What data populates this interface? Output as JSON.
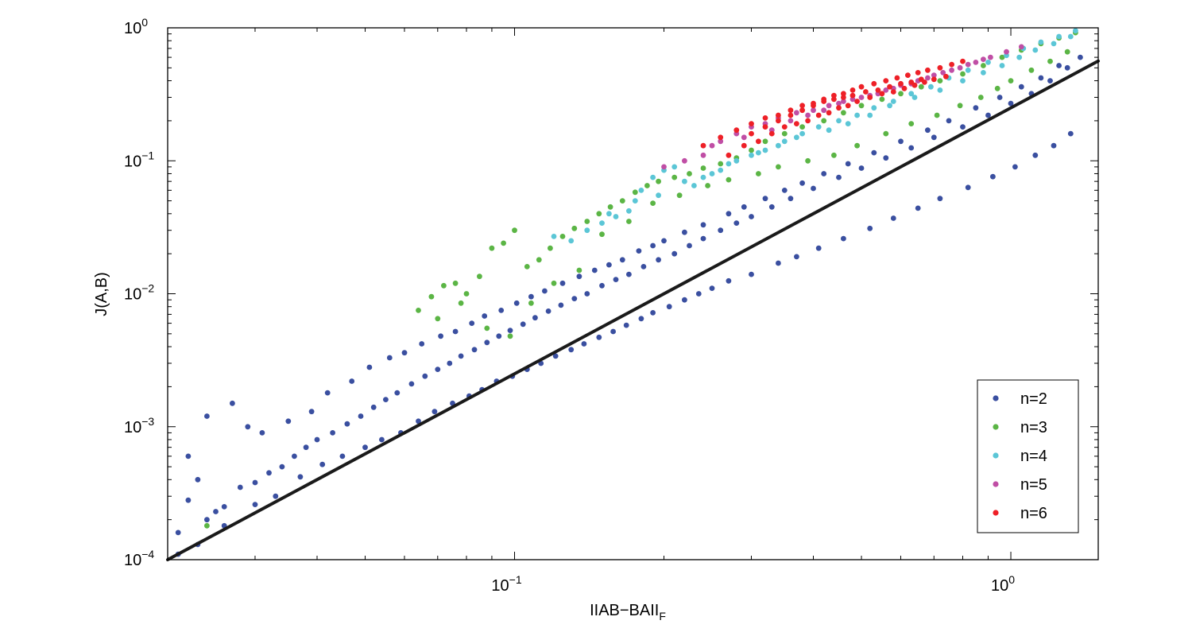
{
  "chart_data": {
    "type": "scatter",
    "title": "",
    "xlabel": "IIAB−BAII",
    "xlabel_sub": "F",
    "ylabel": "J(A,B)",
    "xscale": "log",
    "yscale": "log",
    "xlim": [
      0.02,
      1.5
    ],
    "ylim": [
      0.0001,
      1
    ],
    "grid": false,
    "legend_position": "bottom-right",
    "x_ticks": [
      {
        "value": 0.1,
        "base": "10",
        "exp": "−1"
      },
      {
        "value": 1,
        "base": "10",
        "exp": "0"
      }
    ],
    "y_ticks": [
      {
        "value": 0.0001,
        "base": "10",
        "exp": "−4"
      },
      {
        "value": 0.001,
        "base": "10",
        "exp": "−3"
      },
      {
        "value": 0.01,
        "base": "10",
        "exp": "−2"
      },
      {
        "value": 0.1,
        "base": "10",
        "exp": "−1"
      },
      {
        "value": 1,
        "base": "10",
        "exp": "0"
      }
    ],
    "reference_line": {
      "x": [
        0.02,
        1.5
      ],
      "y": [
        0.0001,
        0.5625
      ],
      "color": "#1a1a1a"
    },
    "series": [
      {
        "name": "n=2",
        "color": "#3a4fa0",
        "x": [
          0.021,
          0.022,
          0.023,
          0.024,
          0.025,
          0.026,
          0.028,
          0.03,
          0.032,
          0.034,
          0.036,
          0.038,
          0.04,
          0.043,
          0.046,
          0.049,
          0.052,
          0.055,
          0.058,
          0.062,
          0.066,
          0.07,
          0.074,
          0.078,
          0.083,
          0.088,
          0.093,
          0.098,
          0.104,
          0.11,
          0.117,
          0.124,
          0.132,
          0.14,
          0.15,
          0.16,
          0.17,
          0.182,
          0.195,
          0.21,
          0.225,
          0.24,
          0.26,
          0.28,
          0.3,
          0.33,
          0.36,
          0.4,
          0.45,
          0.5,
          0.56,
          0.63,
          0.7,
          0.8,
          0.9,
          1.0,
          1.1,
          1.2,
          1.3,
          1.38,
          0.022,
          0.024,
          0.027,
          0.029,
          0.031,
          0.035,
          0.039,
          0.042,
          0.047,
          0.051,
          0.056,
          0.06,
          0.065,
          0.071,
          0.076,
          0.082,
          0.087,
          0.094,
          0.101,
          0.108,
          0.115,
          0.125,
          0.135,
          0.145,
          0.155,
          0.165,
          0.178,
          0.19,
          0.2,
          0.22,
          0.24,
          0.27,
          0.29,
          0.32,
          0.35,
          0.38,
          0.42,
          0.47,
          0.53,
          0.6,
          0.68,
          0.75,
          0.85,
          0.95,
          1.05,
          1.15,
          1.25,
          0.021,
          0.023,
          0.026,
          0.03,
          0.033,
          0.037,
          0.041,
          0.045,
          0.05,
          0.054,
          0.059,
          0.064,
          0.069,
          0.075,
          0.081,
          0.086,
          0.092,
          0.099,
          0.106,
          0.113,
          0.121,
          0.13,
          0.138,
          0.148,
          0.158,
          0.168,
          0.18,
          0.19,
          0.205,
          0.22,
          0.235,
          0.25,
          0.27,
          0.3,
          0.34,
          0.37,
          0.41,
          0.46,
          0.52,
          0.58,
          0.65,
          0.72,
          0.82,
          0.92,
          1.02,
          1.12,
          1.22,
          1.32
        ],
        "y": [
          0.00016,
          0.00028,
          0.0004,
          0.0002,
          0.00023,
          0.00025,
          0.00035,
          0.00038,
          0.00045,
          0.0005,
          0.0006,
          0.0007,
          0.0008,
          0.0009,
          0.00105,
          0.0012,
          0.0014,
          0.0016,
          0.0018,
          0.0021,
          0.0024,
          0.0027,
          0.003,
          0.0034,
          0.0038,
          0.0043,
          0.0048,
          0.0053,
          0.0059,
          0.0066,
          0.0074,
          0.0082,
          0.0092,
          0.01,
          0.0115,
          0.0128,
          0.014,
          0.016,
          0.018,
          0.02,
          0.023,
          0.026,
          0.03,
          0.034,
          0.038,
          0.045,
          0.052,
          0.062,
          0.075,
          0.088,
          0.105,
          0.125,
          0.15,
          0.18,
          0.22,
          0.27,
          0.32,
          0.4,
          0.5,
          0.6,
          0.0006,
          0.0012,
          0.0015,
          0.001,
          0.0009,
          0.0011,
          0.0013,
          0.0018,
          0.0022,
          0.0028,
          0.0033,
          0.0036,
          0.0042,
          0.0048,
          0.0052,
          0.006,
          0.0068,
          0.0075,
          0.0085,
          0.0095,
          0.0105,
          0.012,
          0.0135,
          0.015,
          0.0165,
          0.018,
          0.021,
          0.023,
          0.025,
          0.029,
          0.033,
          0.04,
          0.045,
          0.052,
          0.06,
          0.068,
          0.08,
          0.095,
          0.115,
          0.14,
          0.17,
          0.2,
          0.25,
          0.3,
          0.36,
          0.42,
          0.52,
          0.00011,
          0.00013,
          0.00018,
          0.00026,
          0.0003,
          0.00042,
          0.00052,
          0.0006,
          0.0007,
          0.0008,
          0.0009,
          0.0011,
          0.0013,
          0.0015,
          0.0017,
          0.0019,
          0.0022,
          0.0024,
          0.0027,
          0.003,
          0.0034,
          0.0038,
          0.0042,
          0.0047,
          0.0052,
          0.0058,
          0.0065,
          0.0072,
          0.008,
          0.009,
          0.01,
          0.011,
          0.0125,
          0.014,
          0.017,
          0.019,
          0.022,
          0.026,
          0.031,
          0.037,
          0.044,
          0.052,
          0.063,
          0.076,
          0.09,
          0.11,
          0.13,
          0.16
        ]
      },
      {
        "name": "n=3",
        "color": "#5bb545",
        "x": [
          0.024,
          0.064,
          0.068,
          0.072,
          0.076,
          0.08,
          0.085,
          0.09,
          0.095,
          0.1,
          0.106,
          0.112,
          0.118,
          0.125,
          0.132,
          0.14,
          0.148,
          0.156,
          0.165,
          0.175,
          0.185,
          0.195,
          0.21,
          0.225,
          0.24,
          0.26,
          0.28,
          0.3,
          0.32,
          0.35,
          0.38,
          0.42,
          0.46,
          0.5,
          0.55,
          0.6,
          0.66,
          0.72,
          0.8,
          0.88,
          0.96,
          1.05,
          1.15,
          1.25,
          1.35,
          0.07,
          0.078,
          0.088,
          0.098,
          0.108,
          0.12,
          0.135,
          0.15,
          0.17,
          0.19,
          0.215,
          0.245,
          0.27,
          0.31,
          0.34,
          0.39,
          0.44,
          0.49,
          0.56,
          0.63,
          0.71,
          0.79,
          0.87,
          0.94,
          1.0,
          1.1,
          1.2,
          1.3
        ],
        "y": [
          0.00018,
          0.0075,
          0.0095,
          0.0115,
          0.012,
          0.01,
          0.0135,
          0.022,
          0.024,
          0.03,
          0.016,
          0.018,
          0.022,
          0.027,
          0.031,
          0.035,
          0.04,
          0.045,
          0.05,
          0.058,
          0.065,
          0.07,
          0.075,
          0.08,
          0.088,
          0.095,
          0.105,
          0.12,
          0.14,
          0.16,
          0.18,
          0.2,
          0.23,
          0.26,
          0.29,
          0.32,
          0.36,
          0.4,
          0.45,
          0.52,
          0.6,
          0.68,
          0.76,
          0.84,
          0.92,
          0.0065,
          0.0085,
          0.0055,
          0.0048,
          0.0085,
          0.012,
          0.015,
          0.028,
          0.035,
          0.048,
          0.055,
          0.065,
          0.072,
          0.08,
          0.09,
          0.1,
          0.11,
          0.13,
          0.16,
          0.19,
          0.22,
          0.26,
          0.3,
          0.35,
          0.4,
          0.48,
          0.56,
          0.66
        ]
      },
      {
        "name": "n=4",
        "color": "#5bc6d6",
        "x": [
          0.12,
          0.13,
          0.14,
          0.15,
          0.16,
          0.17,
          0.18,
          0.19,
          0.2,
          0.21,
          0.22,
          0.24,
          0.26,
          0.28,
          0.3,
          0.32,
          0.35,
          0.38,
          0.41,
          0.45,
          0.49,
          0.53,
          0.58,
          0.63,
          0.69,
          0.75,
          0.82,
          0.9,
          0.98,
          1.06,
          1.15,
          1.25,
          1.35,
          0.155,
          0.175,
          0.195,
          0.23,
          0.25,
          0.27,
          0.31,
          0.34,
          0.37,
          0.43,
          0.47,
          0.52,
          0.57,
          0.64,
          0.72,
          0.8,
          0.88,
          0.96,
          1.04,
          1.12,
          1.22,
          1.32
        ],
        "y": [
          0.027,
          0.025,
          0.03,
          0.034,
          0.038,
          0.042,
          0.06,
          0.075,
          0.085,
          0.09,
          0.07,
          0.075,
          0.085,
          0.1,
          0.11,
          0.12,
          0.14,
          0.16,
          0.18,
          0.2,
          0.22,
          0.25,
          0.28,
          0.32,
          0.36,
          0.42,
          0.48,
          0.55,
          0.62,
          0.7,
          0.78,
          0.86,
          0.95,
          0.04,
          0.05,
          0.055,
          0.065,
          0.08,
          0.095,
          0.115,
          0.13,
          0.15,
          0.17,
          0.19,
          0.22,
          0.26,
          0.3,
          0.34,
          0.4,
          0.46,
          0.52,
          0.6,
          0.68,
          0.76,
          0.86
        ]
      },
      {
        "name": "n=5",
        "color": "#c04ea5",
        "x": [
          0.2,
          0.22,
          0.24,
          0.26,
          0.28,
          0.3,
          0.32,
          0.34,
          0.37,
          0.4,
          0.43,
          0.46,
          0.5,
          0.54,
          0.58,
          0.63,
          0.68,
          0.73,
          0.79,
          0.85,
          0.91,
          0.98,
          1.05,
          0.25,
          0.29,
          0.33,
          0.36,
          0.39,
          0.42,
          0.45,
          0.48,
          0.52,
          0.56,
          0.6,
          0.65,
          0.7,
          0.76,
          0.82,
          0.88
        ],
        "y": [
          0.09,
          0.1,
          0.11,
          0.14,
          0.16,
          0.18,
          0.19,
          0.21,
          0.23,
          0.24,
          0.26,
          0.28,
          0.3,
          0.32,
          0.35,
          0.38,
          0.42,
          0.46,
          0.5,
          0.55,
          0.6,
          0.66,
          0.72,
          0.13,
          0.15,
          0.17,
          0.2,
          0.22,
          0.24,
          0.27,
          0.29,
          0.31,
          0.34,
          0.37,
          0.4,
          0.44,
          0.48,
          0.53,
          0.58
        ]
      },
      {
        "name": "n=6",
        "color": "#ee2027",
        "x": [
          0.24,
          0.26,
          0.28,
          0.3,
          0.32,
          0.34,
          0.36,
          0.38,
          0.4,
          0.42,
          0.44,
          0.46,
          0.48,
          0.5,
          0.53,
          0.56,
          0.59,
          0.62,
          0.65,
          0.68,
          0.72,
          0.76,
          0.8,
          0.27,
          0.29,
          0.31,
          0.33,
          0.35,
          0.37,
          0.39,
          0.41,
          0.43,
          0.45,
          0.47,
          0.49,
          0.52,
          0.55,
          0.58,
          0.61,
          0.64,
          0.67,
          0.7,
          0.74,
          0.3,
          0.32,
          0.34,
          0.36,
          0.38,
          0.4,
          0.42,
          0.44,
          0.46,
          0.48,
          0.51,
          0.54,
          0.57,
          0.6,
          0.63,
          0.66
        ],
        "y": [
          0.13,
          0.15,
          0.17,
          0.19,
          0.21,
          0.22,
          0.24,
          0.26,
          0.27,
          0.29,
          0.31,
          0.32,
          0.34,
          0.36,
          0.38,
          0.4,
          0.42,
          0.44,
          0.46,
          0.48,
          0.5,
          0.53,
          0.56,
          0.11,
          0.13,
          0.14,
          0.16,
          0.18,
          0.19,
          0.2,
          0.22,
          0.23,
          0.25,
          0.26,
          0.28,
          0.3,
          0.32,
          0.33,
          0.35,
          0.37,
          0.39,
          0.41,
          0.43,
          0.16,
          0.18,
          0.2,
          0.22,
          0.24,
          0.26,
          0.28,
          0.29,
          0.3,
          0.31,
          0.33,
          0.34,
          0.36,
          0.38,
          0.39,
          0.41
        ]
      }
    ]
  }
}
